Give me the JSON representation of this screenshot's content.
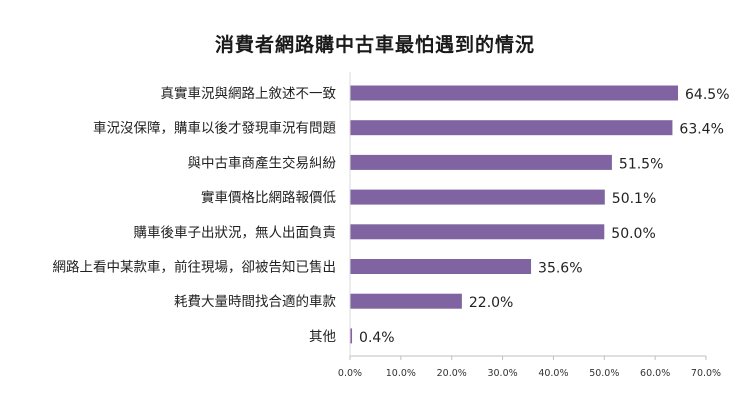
{
  "chart_data": {
    "type": "bar",
    "orientation": "horizontal",
    "title": "消費者網路購中古車最怕遇到的情況",
    "categories": [
      "真實車況與網路上敘述不一致",
      "車況沒保障，購車以後才發現車況有問題",
      "與中古車商產生交易糾紛",
      "實車價格比網路報價低",
      "購車後車子出狀況，無人出面負責",
      "網路上看中某款車，前往現場，卻被告知已售出",
      "耗費大量時間找合適的車款",
      "其他"
    ],
    "values": [
      64.5,
      63.4,
      51.5,
      50.1,
      50.0,
      35.6,
      22.0,
      0.4
    ],
    "value_labels": [
      "64.5%",
      "63.4%",
      "51.5%",
      "50.1%",
      "50.0%",
      "35.6%",
      "22.0%",
      "0.4%"
    ],
    "xlim": [
      0,
      70
    ],
    "x_ticks": [
      "0.0%",
      "10.0%",
      "20.0%",
      "30.0%",
      "40.0%",
      "50.0%",
      "60.0%",
      "70.0%"
    ],
    "bar_color": "#8064a2",
    "gridlines": false,
    "legend": "none"
  }
}
